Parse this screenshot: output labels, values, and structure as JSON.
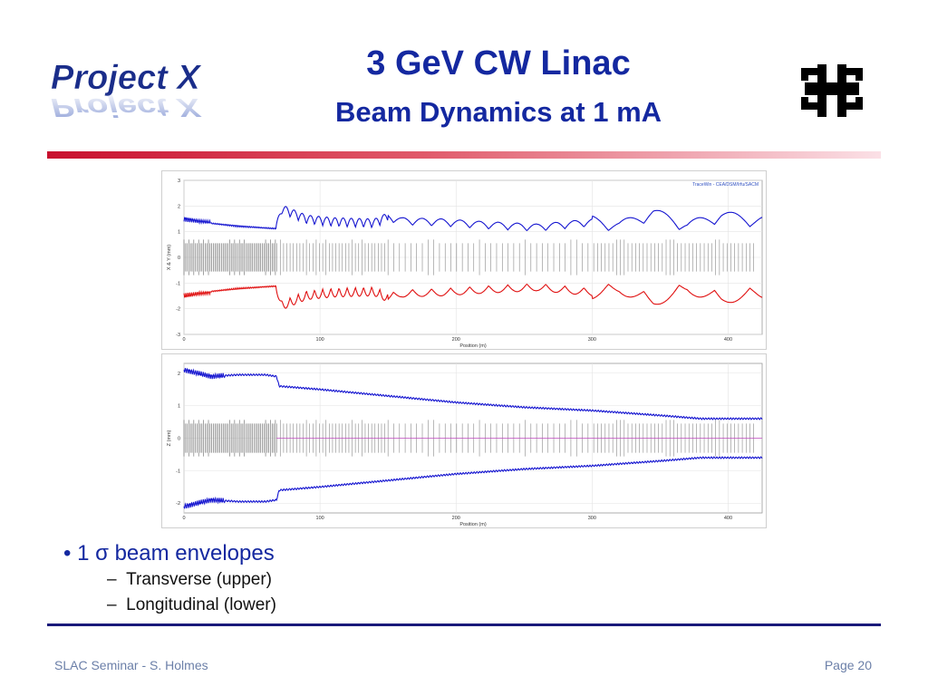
{
  "slide": {
    "logo_text": "Project X",
    "title": "3 GeV CW Linac",
    "subtitle": "Beam Dynamics at 1 mA",
    "bullets": [
      {
        "label": "1 σ beam envelopes"
      },
      {
        "label": "Transverse (upper)"
      },
      {
        "label": "Longitudinal (lower)"
      }
    ],
    "footer_left": "SLAC Seminar - S. Holmes",
    "footer_right": "Page 20",
    "colors": {
      "accent": "#1428a0",
      "red_bar": "#c8102e",
      "rule": "#1a1a7a"
    }
  },
  "chart_data": [
    {
      "type": "line",
      "watermark": "TraceWin - CEA/DSM/Irfu/SACM",
      "xlabel": "Position (m)",
      "ylabel": "X & Y (mm)",
      "xlim": [
        0,
        425
      ],
      "ylim": [
        -3,
        3
      ],
      "xticks": [
        0,
        100,
        200,
        300,
        400
      ],
      "yticks": [
        3,
        2,
        1,
        0,
        -1,
        -2,
        -3
      ],
      "grid": true,
      "series": [
        {
          "color": "#1515d0",
          "x": [
            0,
            10,
            20,
            40,
            60,
            68,
            72,
            90,
            110,
            140,
            150,
            160,
            190,
            220,
            260,
            300,
            320,
            345,
            370,
            395,
            420
          ],
          "y": [
            1.45,
            1.35,
            1.3,
            1.2,
            1.12,
            1.1,
            1.8,
            1.4,
            1.3,
            1.25,
            1.5,
            1.35,
            1.3,
            1.2,
            1.1,
            1.3,
            1.1,
            1.6,
            1.1,
            1.5,
            1.3
          ]
        },
        {
          "color": "#e01010",
          "x": [
            0,
            10,
            20,
            40,
            60,
            68,
            72,
            90,
            110,
            140,
            150,
            160,
            190,
            220,
            260,
            300,
            320,
            345,
            370,
            395,
            420
          ],
          "y": [
            -1.45,
            -1.35,
            -1.3,
            -1.2,
            -1.12,
            -1.1,
            -1.8,
            -1.4,
            -1.3,
            -1.25,
            -1.5,
            -1.35,
            -1.3,
            -1.2,
            -1.1,
            -1.3,
            -1.1,
            -1.6,
            -1.1,
            -1.5,
            -1.3
          ]
        }
      ]
    },
    {
      "type": "line",
      "xlabel": "Position (m)",
      "ylabel": "Z (mm)",
      "xlim": [
        0,
        425
      ],
      "ylim": [
        -2.3,
        2.3
      ],
      "xticks": [
        0,
        100,
        200,
        300,
        400
      ],
      "yticks": [
        2,
        1,
        0,
        -1,
        -2
      ],
      "grid": true,
      "series": [
        {
          "color": "#1515d0",
          "x": [
            0,
            10,
            20,
            40,
            60,
            68,
            70,
            100,
            150,
            200,
            250,
            300,
            350,
            380,
            425
          ],
          "y": [
            2.1,
            2.0,
            1.9,
            1.95,
            1.95,
            1.9,
            1.6,
            1.5,
            1.3,
            1.1,
            0.95,
            0.85,
            0.7,
            0.6,
            0.6
          ]
        },
        {
          "color": "#1515d0",
          "x": [
            0,
            10,
            20,
            40,
            60,
            68,
            70,
            100,
            150,
            200,
            250,
            300,
            350,
            380,
            425
          ],
          "y": [
            -2.1,
            -2.0,
            -1.9,
            -1.95,
            -1.95,
            -1.9,
            -1.6,
            -1.5,
            -1.3,
            -1.1,
            -0.95,
            -0.85,
            -0.7,
            -0.6,
            -0.6
          ]
        }
      ]
    }
  ]
}
